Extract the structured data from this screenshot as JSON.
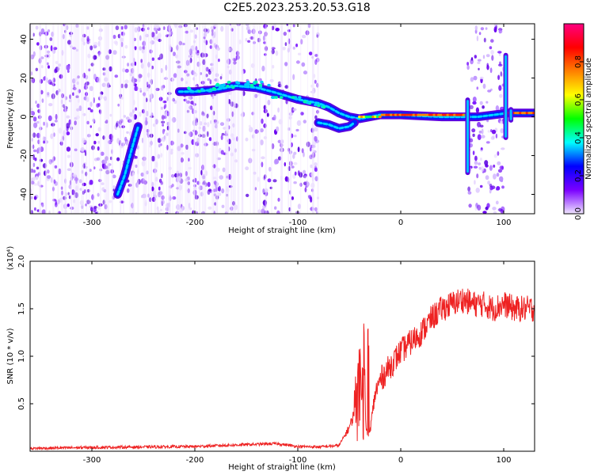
{
  "title": "C2E5.2023.253.20.53.G18",
  "chart_data": [
    {
      "type": "heatmap",
      "title": "C2E5.2023.253.20.53.G18",
      "xlabel": "Height of straight line (km)",
      "ylabel": "Frequency (Hz)",
      "xlim": [
        -360,
        130
      ],
      "ylim": [
        -50,
        48
      ],
      "x_ticks": [
        -300,
        -200,
        -100,
        0,
        100
      ],
      "x_tick_labels": [
        "-300",
        "-200",
        "-100",
        "0",
        "100"
      ],
      "y_ticks": [
        -40,
        -20,
        0,
        20,
        40
      ],
      "y_tick_labels": [
        "-40",
        "-20",
        "0",
        "20",
        "40"
      ],
      "colorbar": {
        "label": "Normalized spectral amplitude",
        "range": [
          0.0,
          1.0
        ],
        "ticks": [
          0.0,
          0.2,
          0.4,
          0.6,
          0.8
        ],
        "tick_labels": [
          "0.0",
          "0.2",
          "0.4",
          "0.6",
          "0.8"
        ],
        "colors": [
          "#f0e6ff",
          "#7a00ff",
          "#0000ff",
          "#00ffff",
          "#00ff00",
          "#ffff00",
          "#ff8000",
          "#ff0000",
          "#ff0080"
        ]
      },
      "ridge": {
        "x": [
          -215,
          -200,
          -180,
          -160,
          -140,
          -125,
          -100,
          -80,
          -70,
          -60,
          -50,
          -40,
          -20,
          0,
          40,
          65,
          75,
          105,
          130
        ],
        "y": [
          13,
          13,
          14,
          16,
          15,
          13,
          9,
          7,
          5,
          2,
          0,
          -1,
          1,
          1,
          0,
          0,
          0,
          2,
          2
        ]
      },
      "lower_ridge": {
        "x": [
          -80,
          -70,
          -60,
          -50,
          -45
        ],
        "y": [
          -3,
          -4,
          -6,
          -5,
          -3
        ]
      },
      "diagonal_streak": {
        "x": [
          -275,
          -268,
          -262,
          -255
        ],
        "y": [
          -40,
          -30,
          -18,
          -5
        ]
      },
      "vertical_bands": [
        {
          "x": 65,
          "ymin": -30,
          "ymax": 10
        },
        {
          "x": 102,
          "ymin": -12,
          "ymax": 33
        },
        {
          "x": 107,
          "ymin": -3,
          "ymax": 5
        }
      ],
      "noise_extent": [
        [
          -360,
          -80
        ],
        [
          65,
          100
        ]
      ]
    },
    {
      "type": "line",
      "xlabel": "Height of straight line (km)",
      "ylabel": "SNR (10 * v/v)",
      "scale_label": "(x10⁴)",
      "xlim": [
        -360,
        130
      ],
      "ylim": [
        0,
        20000
      ],
      "x_ticks": [
        -300,
        -200,
        -100,
        0,
        100
      ],
      "x_tick_labels": [
        "-300",
        "-200",
        "-100",
        "0",
        "100"
      ],
      "y_ticks": [
        5000,
        10000,
        15000,
        20000
      ],
      "y_tick_labels": [
        "0.5",
        "1.0",
        "1.5",
        "2.0"
      ],
      "color": "#ee2222",
      "series": [
        {
          "x": [
            -360,
            -300,
            -250,
            -200,
            -150,
            -120,
            -100,
            -80,
            -60,
            -50,
            -45,
            -42,
            -40,
            -38,
            -36,
            -34,
            -32,
            -30,
            -25,
            -20,
            -10,
            0,
            10,
            20,
            30,
            40,
            50,
            60,
            70,
            80,
            90,
            100,
            110,
            120,
            130
          ],
          "y": [
            300,
            400,
            450,
            500,
            700,
            800,
            500,
            450,
            600,
            2500,
            4000,
            7000,
            12000,
            5000,
            13500,
            3000,
            1500,
            2000,
            6000,
            7500,
            9000,
            10500,
            11500,
            12500,
            14000,
            15000,
            15500,
            16000,
            15500,
            15500,
            15000,
            15500,
            15000,
            15000,
            15000
          ]
        }
      ]
    }
  ]
}
